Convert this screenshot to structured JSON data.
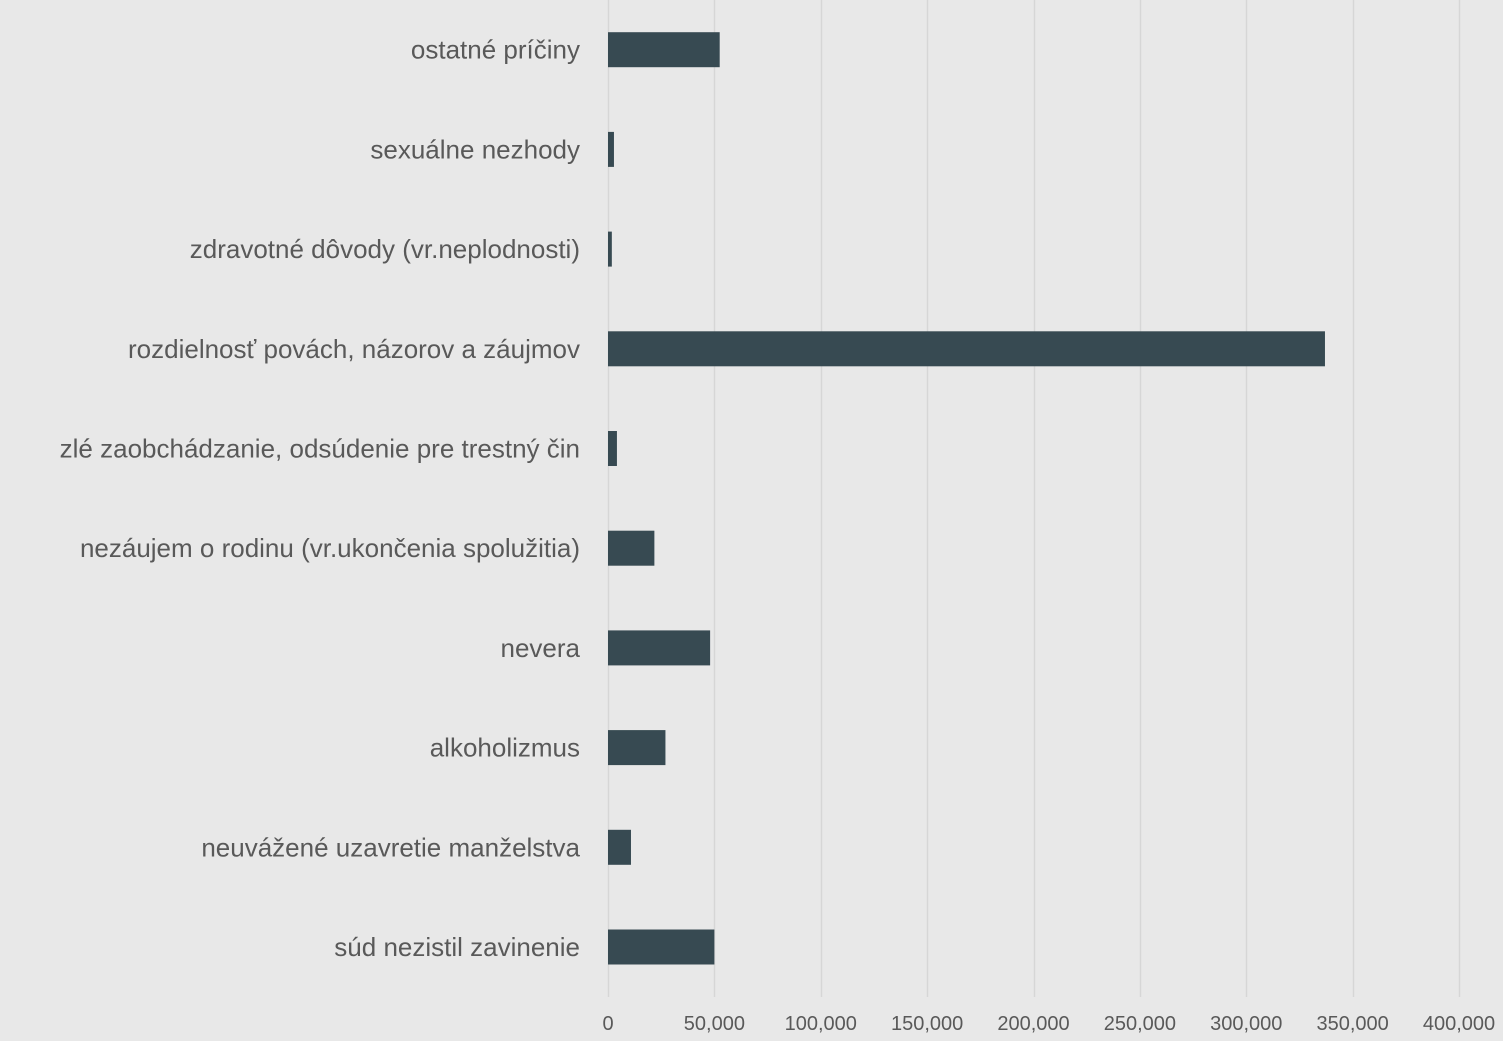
{
  "chart_data": {
    "type": "bar",
    "orientation": "horizontal",
    "categories": [
      "ostatné príčiny",
      "sexuálne nezhody",
      "zdravotné dôvody (vr.neplodnosti)",
      "rozdielnosť povách, názorov a záujmov",
      "zlé zaobchádzanie, odsúdenie pre trestný čin",
      "nezáujem o rodinu (vr.ukončenia spolužitia)",
      "nevera",
      "alkoholizmus",
      "neuvážené uzavretie manželstva",
      "súd nezistil zavinenie"
    ],
    "values": [
      52500,
      2800,
      1800,
      337000,
      4200,
      21800,
      48000,
      27000,
      10800,
      50000
    ],
    "xlim": [
      0,
      400000
    ],
    "x_ticks": [
      0,
      50000,
      100000,
      150000,
      200000,
      250000,
      300000,
      350000,
      400000
    ],
    "x_tick_labels": [
      "0",
      "50,000",
      "100,000",
      "150,000",
      "200,000",
      "250,000",
      "300,000",
      "350,000",
      "400,000"
    ],
    "grid": true,
    "bar_color": "#374a52",
    "grid_color": "#d6d6d6",
    "background": "#e8e8e8"
  }
}
